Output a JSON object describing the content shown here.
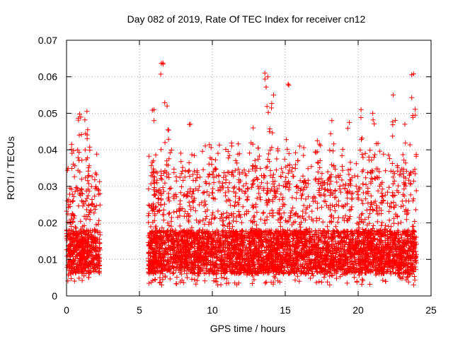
{
  "chart_data": {
    "type": "scatter",
    "title": "Day 082 of 2019, Rate Of TEC Index for receiver cn12",
    "xlabel": "GPS time / hours",
    "ylabel": "ROTI / TECUs",
    "xlim": [
      0,
      25
    ],
    "ylim": [
      0,
      0.07
    ],
    "x_ticks": [
      0,
      5,
      10,
      15,
      20,
      25
    ],
    "y_ticks": [
      0,
      0.01,
      0.02,
      0.03,
      0.04,
      0.05,
      0.06,
      0.07
    ],
    "x_tick_labels": [
      "0",
      "5",
      "10",
      "15",
      "20",
      "25"
    ],
    "y_tick_labels": [
      "0",
      "0.01",
      "0.02",
      "0.03",
      "0.04",
      "0.05",
      "0.06",
      "0.07"
    ],
    "grid": true,
    "marker": "+",
    "series": [
      {
        "name": "cn12",
        "color": "#ff0000",
        "segments": [
          {
            "x_start": 0.0,
            "x_end": 2.3,
            "typical_range": [
              0.004,
              0.03
            ]
          },
          {
            "x_start": 5.6,
            "x_end": 24.0,
            "typical_range": [
              0.003,
              0.035
            ]
          }
        ],
        "peaks": [
          {
            "x": 0.35,
            "y": 0.0415
          },
          {
            "x": 0.9,
            "y": 0.0498
          },
          {
            "x": 1.4,
            "y": 0.0505
          },
          {
            "x": 1.45,
            "y": 0.0455
          },
          {
            "x": 6.0,
            "y": 0.051
          },
          {
            "x": 6.6,
            "y": 0.0638
          },
          {
            "x": 6.9,
            "y": 0.052
          },
          {
            "x": 8.5,
            "y": 0.047
          },
          {
            "x": 12.8,
            "y": 0.046
          },
          {
            "x": 13.6,
            "y": 0.061
          },
          {
            "x": 13.8,
            "y": 0.06
          },
          {
            "x": 14.2,
            "y": 0.055
          },
          {
            "x": 15.2,
            "y": 0.058
          },
          {
            "x": 17.2,
            "y": 0.0425
          },
          {
            "x": 18.2,
            "y": 0.048
          },
          {
            "x": 19.4,
            "y": 0.0475
          },
          {
            "x": 20.2,
            "y": 0.051
          },
          {
            "x": 21.0,
            "y": 0.05
          },
          {
            "x": 22.4,
            "y": 0.055
          },
          {
            "x": 23.2,
            "y": 0.047
          },
          {
            "x": 23.8,
            "y": 0.0608
          }
        ]
      }
    ]
  }
}
